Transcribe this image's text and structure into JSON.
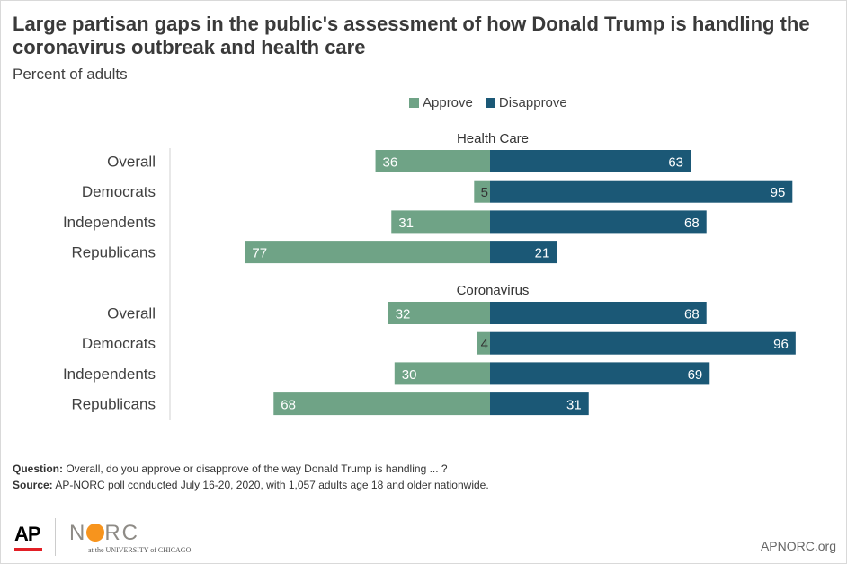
{
  "header": {
    "title": "Large partisan gaps in the public's assessment of how Donald Trump is handling the coronavirus outbreak and health care",
    "subtitle": "Percent of adults"
  },
  "legend": {
    "approve": "Approve",
    "disapprove": "Disapprove"
  },
  "colors": {
    "approve": "#6fa386",
    "disapprove": "#1b5876",
    "label_text": "#ffffff"
  },
  "chart_data": {
    "type": "bar",
    "orientation": "horizontal-diverging",
    "categories": [
      "Overall",
      "Democrats",
      "Independents",
      "Republicans"
    ],
    "groups": [
      {
        "name": "Health Care",
        "approve": [
          36,
          5,
          31,
          77
        ],
        "disapprove": [
          63,
          95,
          68,
          21
        ]
      },
      {
        "name": "Coronavirus",
        "approve": [
          32,
          4,
          30,
          68
        ],
        "disapprove": [
          68,
          96,
          69,
          31
        ]
      }
    ],
    "series": [
      {
        "name": "Approve",
        "color": "#6fa386"
      },
      {
        "name": "Disapprove",
        "color": "#1b5876"
      }
    ],
    "legend_position": "top",
    "grid": false
  },
  "footnote": {
    "question_label": "Question:",
    "question_text": "Overall, do you approve or disapprove of the way Donald Trump is handling ... ?",
    "source_label": "Source:",
    "source_text": "AP-NORC poll conducted July 16-20, 2020,  with 1,057 adults age 18 and older nationwide."
  },
  "logos": {
    "ap": "AP",
    "norc_left": "N",
    "norc_right": "RC",
    "norc_sub": "at the UNIVERSITY of CHICAGO"
  },
  "url": "APNORC.org"
}
